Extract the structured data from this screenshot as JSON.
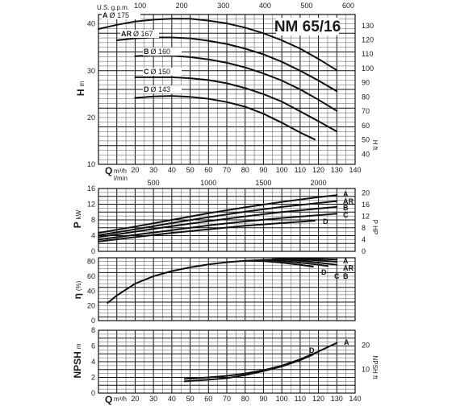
{
  "chart_data": {
    "type": "line",
    "title": "NM 65/16",
    "impellers": [
      {
        "id": "A",
        "dia": "Ø 175"
      },
      {
        "id": "AR",
        "dia": "Ø 167"
      },
      {
        "id": "B",
        "dia": "Ø 160"
      },
      {
        "id": "C",
        "dia": "Ø 150"
      },
      {
        "id": "D",
        "dia": "Ø 143"
      }
    ],
    "q_m3h_label": "Q",
    "q_m3h_unit": "m³/h",
    "q_lmin_unit": "l/min",
    "q_usgpm_unit": "U.S. g.p.m.",
    "x_m3h_ticks": [
      "0",
      "10",
      "20",
      "30",
      "40",
      "50",
      "60",
      "70",
      "80",
      "90",
      "100",
      "110",
      "120",
      "130",
      "140"
    ],
    "x_lmin_ticks": [
      "500",
      "1000",
      "1500",
      "2000"
    ],
    "x_usgpm_ticks": [
      "0",
      "100",
      "200",
      "300",
      "400",
      "500",
      "600"
    ],
    "panels": {
      "head": {
        "label": "H",
        "unit": "m",
        "right_unit": "H ft",
        "y_ticks": [
          "10",
          "20",
          "30",
          "40"
        ],
        "right_ticks": [
          "40",
          "50",
          "60",
          "70",
          "80",
          "90",
          "100",
          "110",
          "120",
          "130"
        ],
        "ylim": [
          10,
          42
        ],
        "series": [
          {
            "name": "A",
            "x": [
              0,
              10,
              20,
              30,
              40,
              50,
              60,
              70,
              80,
              90,
              100,
              110,
              120,
              130
            ],
            "y": [
              38.9,
              39.8,
              40.5,
              40.9,
              41.1,
              41.1,
              40.7,
              40.1,
              39.2,
              38.0,
              36.5,
              34.7,
              32.5,
              30.1
            ]
          },
          {
            "name": "AR",
            "x": [
              10,
              20,
              30,
              40,
              50,
              60,
              70,
              80,
              90,
              100,
              110,
              120,
              130
            ],
            "y": [
              36.5,
              36.9,
              37.1,
              37.1,
              36.9,
              36.4,
              35.7,
              34.7,
              33.5,
              31.9,
              30.0,
              27.9,
              25.6
            ]
          },
          {
            "name": "B",
            "x": [
              20,
              30,
              40,
              50,
              60,
              70,
              80,
              90,
              100,
              110,
              120,
              130
            ],
            "y": [
              33.1,
              33.3,
              33.2,
              32.9,
              32.4,
              31.7,
              30.7,
              29.4,
              27.9,
              26.0,
              23.8,
              21.4
            ]
          },
          {
            "name": "C",
            "x": [
              20,
              30,
              40,
              50,
              60,
              70,
              80,
              90,
              100,
              110,
              120,
              130
            ],
            "y": [
              28.6,
              28.6,
              28.6,
              28.4,
              28.0,
              27.3,
              26.3,
              25.0,
              23.4,
              21.3,
              19.2,
              17.0
            ]
          },
          {
            "name": "D",
            "x": [
              20,
              30,
              40,
              50,
              60,
              70,
              80,
              90,
              100,
              110,
              118
            ],
            "y": [
              24.2,
              24.5,
              24.6,
              24.4,
              24.0,
              23.3,
              22.3,
              20.8,
              18.9,
              16.8,
              15.3
            ]
          }
        ]
      },
      "power": {
        "label": "P",
        "unit": "kW",
        "right_unit": "P HP",
        "y_ticks": [
          "0",
          "4",
          "8",
          "12",
          "16"
        ],
        "right_ticks": [
          "0",
          "4",
          "8",
          "12",
          "16",
          "20"
        ],
        "ylim": [
          0,
          16
        ],
        "series": [
          {
            "name": "A",
            "x": [
              0,
              20,
              40,
              60,
              80,
              100,
              120,
              130
            ],
            "y": [
              4.7,
              6.3,
              8.0,
              9.7,
              11.2,
              12.6,
              13.8,
              14.3
            ]
          },
          {
            "name": "AR",
            "x": [
              0,
              20,
              40,
              60,
              80,
              100,
              120,
              130
            ],
            "y": [
              4.1,
              5.6,
              7.2,
              8.7,
              10.1,
              11.3,
              12.3,
              12.8
            ]
          },
          {
            "name": "B",
            "x": [
              0,
              20,
              40,
              60,
              80,
              100,
              120,
              130
            ],
            "y": [
              3.6,
              5.0,
              6.4,
              7.7,
              8.9,
              10.0,
              10.9,
              11.3
            ]
          },
          {
            "name": "C",
            "x": [
              0,
              20,
              40,
              60,
              80,
              100,
              120,
              130
            ],
            "y": [
              3.0,
              4.2,
              5.4,
              6.6,
              7.6,
              8.5,
              9.2,
              9.6
            ]
          },
          {
            "name": "D",
            "x": [
              0,
              20,
              40,
              60,
              80,
              100,
              118
            ],
            "y": [
              2.5,
              3.6,
              4.7,
              5.6,
              6.5,
              7.2,
              7.8
            ]
          }
        ]
      },
      "efficiency": {
        "label": "η",
        "unit": "(%)",
        "y_ticks": [
          "0",
          "20",
          "40",
          "60",
          "80"
        ],
        "ylim": [
          0,
          85
        ],
        "series": [
          {
            "name": "A",
            "x": [
              5,
              10,
              20,
              30,
              40,
              50,
              60,
              70,
              80,
              90,
              100,
              110,
              120,
              130
            ],
            "y": [
              24,
              34,
              50,
              60,
              67,
              72,
              76,
              79,
              81,
              82,
              83,
              83.5,
              83.5,
              82.5
            ]
          },
          {
            "name": "AR",
            "x": [
              95,
              100,
              110,
              120,
              130
            ],
            "y": [
              83,
              83.5,
              82.5,
              81.5,
              79.5
            ]
          },
          {
            "name": "B",
            "x": [
              90,
              100,
              110,
              120,
              130
            ],
            "y": [
              82,
              82.5,
              81,
              78.5,
              75.5
            ]
          },
          {
            "name": "C",
            "x": [
              85,
              95,
              105,
              115,
              125
            ],
            "y": [
              81.5,
              81.5,
              79.5,
              77,
              74
            ]
          },
          {
            "name": "D",
            "x": [
              80,
              90,
              100,
              110,
              117
            ],
            "y": [
              81,
              80.5,
              78.5,
              75.5,
              73
            ]
          }
        ]
      },
      "npsh": {
        "label": "NPSH",
        "unit": "m",
        "right_unit": "NPSH ft",
        "y_ticks": [
          "0",
          "2",
          "4",
          "6",
          "8"
        ],
        "right_ticks": [
          "10",
          "20"
        ],
        "ylim": [
          0,
          8
        ],
        "series": [
          {
            "name": "A",
            "x": [
              47,
              60,
              70,
              80,
              90,
              100,
              110,
              120,
              130
            ],
            "y": [
              1.8,
              2.0,
              2.2,
              2.5,
              2.9,
              3.5,
              4.3,
              5.3,
              6.4
            ]
          },
          {
            "name": "D",
            "x": [
              47,
              60,
              70,
              80,
              90,
              100,
              110,
              117
            ],
            "y": [
              1.5,
              1.7,
              1.9,
              2.3,
              2.8,
              3.4,
              4.2,
              4.9
            ]
          }
        ]
      }
    }
  }
}
